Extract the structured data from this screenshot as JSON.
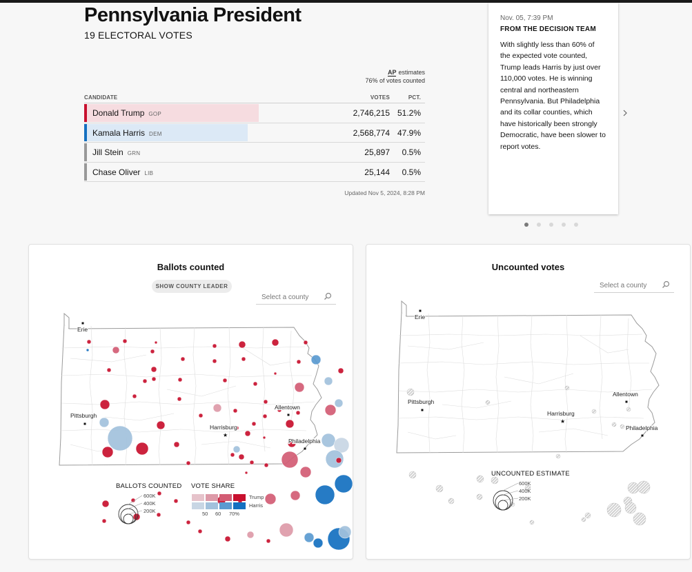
{
  "race": {
    "title": "Pennsylvania President",
    "subtitle": "19 ELECTORAL VOTES"
  },
  "source": {
    "logo": "AP",
    "estimates_label": "estimates",
    "reporting": "76% of votes counted"
  },
  "table": {
    "headers": {
      "candidate": "CANDIDATE",
      "votes": "VOTES",
      "pct": "PCT."
    },
    "rows": [
      {
        "name": "Donald Trump",
        "party": "GOP",
        "votes": "2,746,215",
        "pct": "51.2%",
        "share": 51.2,
        "color": "#c8102e",
        "fill": "#f6dce0"
      },
      {
        "name": "Kamala Harris",
        "party": "DEM",
        "votes": "2,568,774",
        "pct": "47.9%",
        "share": 47.9,
        "color": "#1470c0",
        "fill": "#dce9f6"
      },
      {
        "name": "Jill Stein",
        "party": "GRN",
        "votes": "25,897",
        "pct": "0.5%",
        "share": 0.5,
        "color": "#999999",
        "fill": "#ffffff"
      },
      {
        "name": "Chase Oliver",
        "party": "LIB",
        "votes": "25,144",
        "pct": "0.5%",
        "share": 0.5,
        "color": "#999999",
        "fill": "#ffffff"
      }
    ],
    "updated": "Updated Nov 5, 2024, 8:28 PM"
  },
  "analysis": {
    "timestamp": "Nov. 05, 7:39 PM",
    "team": "FROM THE DECISION TEAM",
    "body": "With slightly less than 60% of the expected vote counted, Trump leads Harris by just over 110,000 votes. He is winning central and northeastern Pennsylvania. But Philadelphia and its collar counties, which have historically been strongly Democratic, have been slower to report votes.",
    "next_icon": "chevron-right-icon",
    "page_count": 5,
    "active_page": 1
  },
  "ballots_panel": {
    "title": "Ballots counted",
    "leader_button": "SHOW COUNTY LEADER",
    "search_placeholder": "Select a county",
    "cities": [
      "Erie",
      "Pittsburgh",
      "Harrisburg",
      "Allentown",
      "Philadelphia"
    ],
    "legend": {
      "size_title": "BALLOTS COUNTED",
      "size_labels": [
        "600K",
        "400K",
        "200K"
      ],
      "share_title": "VOTE SHARE",
      "trump_label": "Trump",
      "harris_label": "Harris",
      "share_ticks": [
        "50",
        "60",
        "70%"
      ],
      "trump_colors": [
        "#e6c3cb",
        "#dd9aa8",
        "#d35c74",
        "#c8102e"
      ],
      "harris_colors": [
        "#c8d6e4",
        "#a2c1dc",
        "#5a9ad0",
        "#1470c0"
      ]
    }
  },
  "uncounted_panel": {
    "title": "Uncounted votes",
    "search_placeholder": "Select a county",
    "cities": [
      "Erie",
      "Pittsburgh",
      "Harrisburg",
      "Allentown",
      "Philadelphia"
    ],
    "legend": {
      "title": "UNCOUNTED ESTIMATE",
      "size_labels": [
        "600K",
        "400K",
        "200K"
      ]
    }
  }
}
